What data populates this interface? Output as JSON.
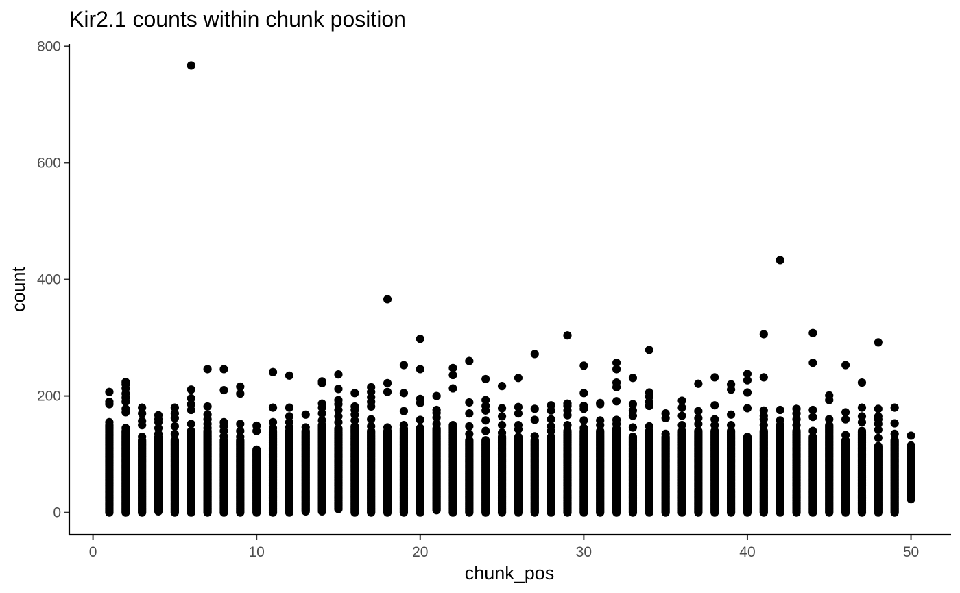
{
  "chart_data": {
    "type": "scatter",
    "title": "Kir2.1 counts within chunk position",
    "xlabel": "chunk_pos",
    "ylabel": "count",
    "xlim": [
      -1.45,
      52.45
    ],
    "ylim": [
      -38,
      804
    ],
    "xticks": [
      0,
      10,
      20,
      30,
      40,
      50
    ],
    "yticks": [
      0,
      200,
      400,
      600,
      800
    ],
    "grid": false,
    "legend": "none",
    "point_color": "#000000",
    "columns": [
      {
        "x": 1,
        "min": 0,
        "dense_max": 150,
        "extra": [
          155,
          186,
          190,
          207
        ]
      },
      {
        "x": 2,
        "min": 0,
        "dense_max": 140,
        "extra": [
          145,
          172,
          178,
          190,
          197,
          204,
          213,
          220,
          224
        ]
      },
      {
        "x": 3,
        "min": 0,
        "dense_max": 125,
        "extra": [
          130,
          150,
          157,
          170,
          180
        ]
      },
      {
        "x": 4,
        "min": 2,
        "dense_max": 130,
        "extra": [
          135,
          145,
          155,
          160,
          167
        ]
      },
      {
        "x": 5,
        "min": 0,
        "dense_max": 125,
        "extra": [
          135,
          148,
          162,
          170,
          180
        ]
      },
      {
        "x": 6,
        "min": 0,
        "dense_max": 140,
        "extra": [
          152,
          176,
          186,
          196,
          211,
          767
        ]
      },
      {
        "x": 7,
        "min": 0,
        "dense_max": 140,
        "extra": [
          145,
          152,
          160,
          168,
          182,
          246
        ]
      },
      {
        "x": 8,
        "min": 0,
        "dense_max": 125,
        "extra": [
          131,
          140,
          148,
          155,
          210,
          246
        ]
      },
      {
        "x": 9,
        "min": 0,
        "dense_max": 125,
        "extra": [
          130,
          140,
          152,
          204,
          216
        ]
      },
      {
        "x": 10,
        "min": 0,
        "dense_max": 108,
        "extra": [
          140,
          149
        ]
      },
      {
        "x": 11,
        "min": 0,
        "dense_max": 140,
        "extra": [
          145,
          155,
          180,
          241
        ]
      },
      {
        "x": 12,
        "min": 0,
        "dense_max": 140,
        "extra": [
          146,
          155,
          165,
          180,
          235
        ]
      },
      {
        "x": 13,
        "min": 2,
        "dense_max": 140,
        "extra": [
          146,
          168
        ]
      },
      {
        "x": 14,
        "min": 2,
        "dense_max": 150,
        "extra": [
          158,
          170,
          180,
          187,
          222,
          225
        ]
      },
      {
        "x": 15,
        "min": 6,
        "dense_max": 145,
        "extra": [
          155,
          165,
          176,
          186,
          193,
          212,
          237
        ]
      },
      {
        "x": 16,
        "min": 0,
        "dense_max": 148,
        "extra": [
          158,
          168,
          176,
          182,
          205
        ]
      },
      {
        "x": 17,
        "min": 0,
        "dense_max": 140,
        "extra": [
          148,
          160,
          182,
          190,
          198,
          207,
          215
        ]
      },
      {
        "x": 18,
        "min": 0,
        "dense_max": 140,
        "extra": [
          146,
          207,
          222,
          366
        ]
      },
      {
        "x": 19,
        "min": 0,
        "dense_max": 145,
        "extra": [
          150,
          174,
          205,
          253
        ]
      },
      {
        "x": 20,
        "min": 0,
        "dense_max": 140,
        "extra": [
          145,
          159,
          188,
          195,
          246,
          298
        ]
      },
      {
        "x": 21,
        "min": 4,
        "dense_max": 145,
        "extra": [
          152,
          163,
          171,
          176,
          200
        ]
      },
      {
        "x": 22,
        "min": 0,
        "dense_max": 150,
        "extra": [
          213,
          236,
          248
        ]
      },
      {
        "x": 23,
        "min": 0,
        "dense_max": 125,
        "extra": [
          135,
          148,
          170,
          189,
          260
        ]
      },
      {
        "x": 24,
        "min": 0,
        "dense_max": 125,
        "extra": [
          140,
          158,
          175,
          183,
          193,
          229
        ]
      },
      {
        "x": 25,
        "min": 0,
        "dense_max": 130,
        "extra": [
          137,
          150,
          165,
          179,
          217
        ]
      },
      {
        "x": 26,
        "min": 0,
        "dense_max": 130,
        "extra": [
          143,
          150,
          170,
          181,
          231
        ]
      },
      {
        "x": 27,
        "min": 0,
        "dense_max": 125,
        "extra": [
          131,
          159,
          178,
          272
        ]
      },
      {
        "x": 28,
        "min": 0,
        "dense_max": 130,
        "extra": [
          140,
          148,
          160,
          175,
          184
        ]
      },
      {
        "x": 29,
        "min": 0,
        "dense_max": 140,
        "extra": [
          150,
          167,
          175,
          183,
          187,
          304
        ]
      },
      {
        "x": 30,
        "min": 0,
        "dense_max": 140,
        "extra": [
          145,
          158,
          178,
          183,
          205,
          252
        ]
      },
      {
        "x": 31,
        "min": 0,
        "dense_max": 140,
        "extra": [
          150,
          158,
          186,
          188
        ]
      },
      {
        "x": 32,
        "min": 0,
        "dense_max": 145,
        "extra": [
          152,
          159,
          191,
          215,
          223,
          246,
          257
        ]
      },
      {
        "x": 33,
        "min": 0,
        "dense_max": 130,
        "extra": [
          146,
          166,
          175,
          186,
          231
        ]
      },
      {
        "x": 34,
        "min": 0,
        "dense_max": 140,
        "extra": [
          148,
          183,
          190,
          199,
          206,
          279
        ]
      },
      {
        "x": 35,
        "min": 0,
        "dense_max": 130,
        "extra": [
          135,
          162,
          170
        ]
      },
      {
        "x": 36,
        "min": 0,
        "dense_max": 140,
        "extra": [
          150,
          166,
          180,
          192
        ]
      },
      {
        "x": 37,
        "min": 0,
        "dense_max": 140,
        "extra": [
          152,
          162,
          174,
          221
        ]
      },
      {
        "x": 38,
        "min": 0,
        "dense_max": 140,
        "extra": [
          150,
          160,
          184,
          232
        ]
      },
      {
        "x": 39,
        "min": 0,
        "dense_max": 140,
        "extra": [
          150,
          168,
          211,
          220
        ]
      },
      {
        "x": 40,
        "min": 0,
        "dense_max": 130,
        "extra": [
          179,
          206,
          227,
          238
        ]
      },
      {
        "x": 41,
        "min": 0,
        "dense_max": 140,
        "extra": [
          150,
          160,
          166,
          175,
          232,
          306
        ]
      },
      {
        "x": 42,
        "min": 0,
        "dense_max": 150,
        "extra": [
          158,
          176,
          433
        ]
      },
      {
        "x": 43,
        "min": 0,
        "dense_max": 140,
        "extra": [
          150,
          160,
          170,
          178
        ]
      },
      {
        "x": 44,
        "min": 0,
        "dense_max": 130,
        "extra": [
          140,
          164,
          176,
          257,
          308
        ]
      },
      {
        "x": 45,
        "min": 0,
        "dense_max": 150,
        "extra": [
          160,
          193,
          201
        ]
      },
      {
        "x": 46,
        "min": 0,
        "dense_max": 125,
        "extra": [
          133,
          160,
          172,
          253
        ]
      },
      {
        "x": 47,
        "min": 0,
        "dense_max": 140,
        "extra": [
          155,
          165,
          180,
          223
        ]
      },
      {
        "x": 48,
        "min": 0,
        "dense_max": 115,
        "extra": [
          128,
          142,
          152,
          160,
          165,
          178,
          292
        ]
      },
      {
        "x": 49,
        "min": 0,
        "dense_max": 125,
        "extra": [
          135,
          153,
          180
        ]
      },
      {
        "x": 50,
        "min": 23,
        "dense_max": 115,
        "extra": [
          132
        ]
      }
    ]
  }
}
